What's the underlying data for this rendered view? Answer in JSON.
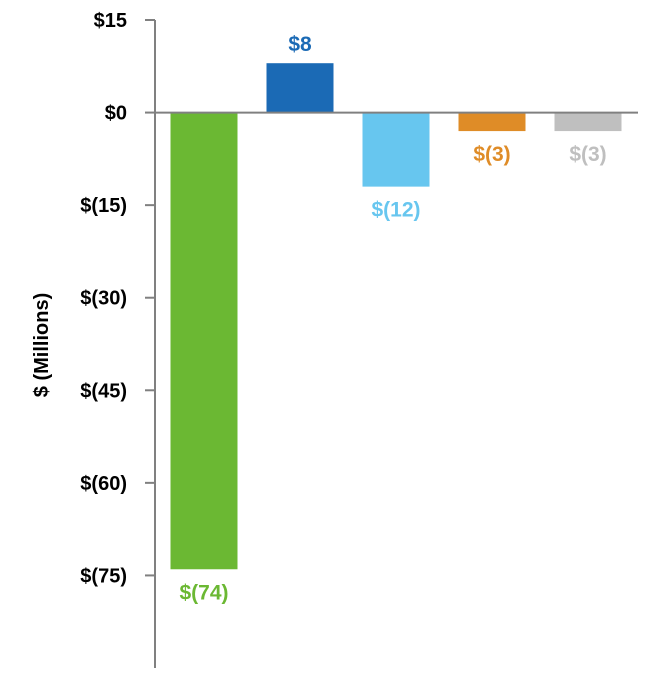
{
  "chart_data": {
    "type": "bar",
    "title": "",
    "xlabel": "",
    "ylabel": "$ (Millions)",
    "ylim": [
      -90,
      15
    ],
    "grid": false,
    "legend": "none",
    "yticks": [
      15,
      0,
      -15,
      -30,
      -45,
      -60,
      -75
    ],
    "ytick_labels": [
      "$15",
      "$0",
      "$(15)",
      "$(30)",
      "$(45)",
      "$(60)",
      "$(75)"
    ],
    "categories": [
      "",
      "",
      "",
      "",
      ""
    ],
    "values": [
      -74,
      8,
      -12,
      -3,
      -3
    ],
    "data_labels": [
      "$(74)",
      "$8",
      "$(12)",
      "$(3)",
      "$(3)"
    ],
    "colors": [
      "#6bb833",
      "#1b6ab5",
      "#67c6ef",
      "#df8c27",
      "#bfbfbf"
    ],
    "label_colors": [
      "#6bb833",
      "#1b6ab5",
      "#67c6ef",
      "#df8c27",
      "#bfbfbf"
    ]
  }
}
